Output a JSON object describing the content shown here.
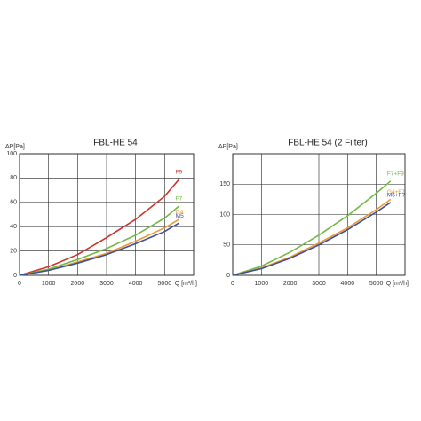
{
  "chart_data": [
    {
      "type": "line",
      "title": "FBL-HE 54",
      "y_label": "ΔP[Pa]",
      "x_label": "Q [m³/h]",
      "x": [
        0,
        1000,
        2000,
        3000,
        4000,
        5000,
        5500
      ],
      "xlim": [
        0,
        6000
      ],
      "xticks": [
        0,
        1000,
        2000,
        3000,
        4000,
        5000
      ],
      "ylim": [
        0,
        100
      ],
      "yticks": [
        0,
        20,
        40,
        60,
        80,
        100
      ],
      "grid": true,
      "series": [
        {
          "name": "F9",
          "color": "#d0322b",
          "values": [
            0,
            7,
            17,
            31,
            46,
            65,
            79
          ]
        },
        {
          "name": "F7",
          "color": "#72b843",
          "values": [
            0,
            5,
            13,
            22,
            33,
            47,
            57
          ]
        },
        {
          "name": "G4",
          "color": "#e89a35",
          "values": [
            0,
            4,
            11,
            18,
            28,
            39,
            46
          ]
        },
        {
          "name": "M5",
          "color": "#3c4f9a",
          "values": [
            0,
            4,
            10,
            17,
            26,
            36,
            43
          ]
        }
      ]
    },
    {
      "type": "line",
      "title": "FBL-HE 54 (2 Filter)",
      "y_label": "ΔP[Pa]",
      "x_label": "Q [m³/h]",
      "x": [
        0,
        1000,
        2000,
        3000,
        4000,
        5000,
        5500
      ],
      "xlim": [
        0,
        6000
      ],
      "xticks": [
        0,
        1000,
        2000,
        3000,
        4000,
        5000
      ],
      "ylim": [
        0,
        200
      ],
      "yticks": [
        0,
        50,
        100,
        150
      ],
      "grid": true,
      "series": [
        {
          "name": "F7+F9",
          "color": "#72b843",
          "values": [
            0,
            15,
            38,
            66,
            98,
            135,
            155
          ]
        },
        {
          "name": "G4+F7",
          "color": "#e89a35",
          "values": [
            0,
            12,
            30,
            53,
            78,
            108,
            125
          ]
        },
        {
          "name": "M5+F7",
          "color": "#3c4f9a",
          "values": [
            0,
            11,
            28,
            50,
            75,
            104,
            120
          ]
        }
      ]
    }
  ]
}
